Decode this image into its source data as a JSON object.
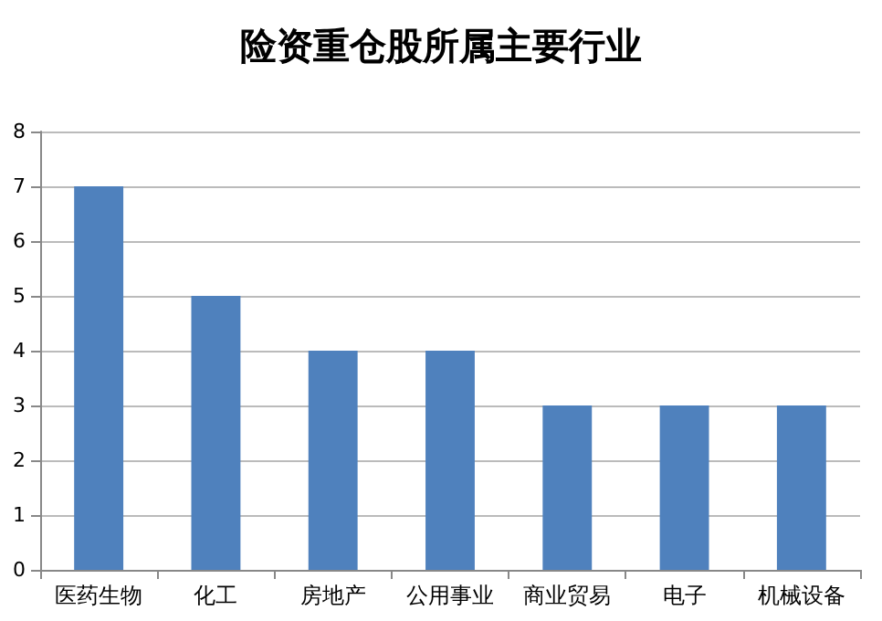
{
  "chart_data": {
    "type": "bar",
    "title": "险资重仓股所属主要行业",
    "categories": [
      "医药生物",
      "化工",
      "房地产",
      "公用事业",
      "商业贸易",
      "电子",
      "机械设备"
    ],
    "values": [
      7,
      5,
      4,
      4,
      3,
      3,
      3
    ],
    "color": "#4f81bd",
    "ylim": [
      0,
      8
    ],
    "yticks": [
      0,
      1,
      2,
      3,
      4,
      5,
      6,
      7,
      8
    ],
    "grid": "y"
  }
}
